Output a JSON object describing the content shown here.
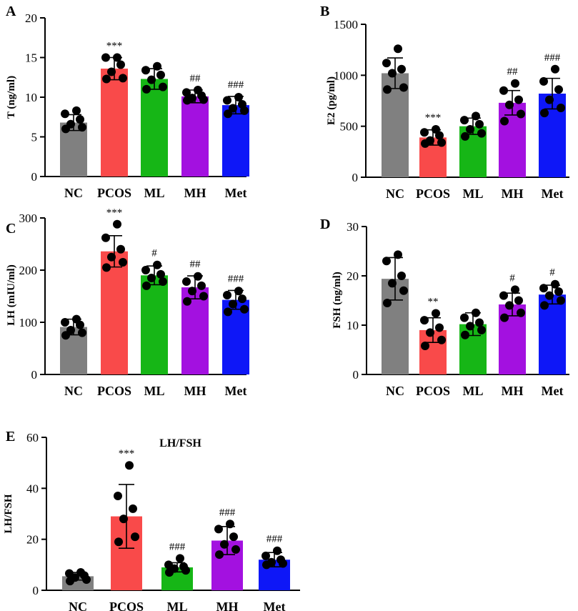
{
  "figure": {
    "colors": {
      "NC": "#808080",
      "PCOS": "#f94a4a",
      "ML": "#16b616",
      "MH": "#a311e0",
      "Met": "#0e17f7",
      "axis": "#000000",
      "point": "#000000"
    }
  },
  "chart_data": [
    {
      "panel": "A",
      "type": "bar",
      "title": "",
      "ylabel": "T (ng/ml)",
      "xlabel": "",
      "categories": [
        "NC",
        "PCOS",
        "ML",
        "MH",
        "Met"
      ],
      "values": [
        6.8,
        13.6,
        12.3,
        10.1,
        9.0
      ],
      "errors": [
        1.0,
        1.4,
        1.3,
        0.8,
        1.1
      ],
      "points": [
        [
          6.0,
          6.2,
          6.6,
          7.2,
          7.9,
          8.3
        ],
        [
          12.3,
          12.4,
          13.2,
          14.1,
          15.0,
          15.0
        ],
        [
          11.0,
          11.3,
          12.2,
          12.8,
          13.4,
          13.9
        ],
        [
          9.6,
          9.7,
          9.9,
          10.2,
          10.6,
          10.9
        ],
        [
          7.9,
          8.3,
          8.6,
          9.1,
          9.6,
          10.0
        ]
      ],
      "significance": [
        "",
        "***",
        "",
        "##",
        "###"
      ],
      "ylim": [
        0,
        20
      ],
      "yticks": [
        0,
        5,
        10,
        15,
        20
      ]
    },
    {
      "panel": "B",
      "type": "bar",
      "title": "",
      "ylabel": "E2 (pg/ml)",
      "xlabel": "",
      "categories": [
        "NC",
        "PCOS",
        "ML",
        "MH",
        "Met"
      ],
      "values": [
        1020,
        390,
        500,
        730,
        820
      ],
      "errors": [
        150,
        75,
        80,
        120,
        150
      ],
      "points": [
        [
          860,
          880,
          1020,
          1060,
          1120,
          1260
        ],
        [
          330,
          340,
          360,
          410,
          440,
          470
        ],
        [
          400,
          430,
          470,
          520,
          560,
          600
        ],
        [
          550,
          620,
          710,
          760,
          850,
          920
        ],
        [
          630,
          680,
          760,
          860,
          940,
          1060
        ]
      ],
      "significance": [
        "",
        "***",
        "",
        "##",
        "###"
      ],
      "ylim": [
        0,
        1500
      ],
      "yticks": [
        0,
        500,
        1000,
        1500
      ]
    },
    {
      "panel": "C",
      "type": "bar",
      "title": "",
      "ylabel": "LH (mIU/ml)",
      "xlabel": "",
      "categories": [
        "NC",
        "PCOS",
        "ML",
        "MH",
        "Met"
      ],
      "values": [
        91,
        236,
        190,
        167,
        143
      ],
      "errors": [
        15,
        30,
        18,
        22,
        18
      ],
      "points": [
        [
          75,
          80,
          85,
          95,
          100,
          106
        ],
        [
          205,
          215,
          225,
          240,
          262,
          288
        ],
        [
          170,
          178,
          185,
          192,
          200,
          210
        ],
        [
          140,
          150,
          160,
          170,
          178,
          188
        ],
        [
          120,
          125,
          135,
          145,
          152,
          160
        ]
      ],
      "significance": [
        "",
        "***",
        "#",
        "##",
        "###"
      ],
      "ylim": [
        0,
        300
      ],
      "yticks": [
        0,
        100,
        200,
        300
      ]
    },
    {
      "panel": "D",
      "type": "bar",
      "title": "",
      "ylabel": "FSH (ng/ml)",
      "xlabel": "",
      "categories": [
        "NC",
        "PCOS",
        "ML",
        "MH",
        "Met"
      ],
      "values": [
        19.4,
        9.0,
        10.2,
        14.2,
        16.2
      ],
      "errors": [
        4.3,
        2.5,
        2.3,
        2.3,
        1.9
      ],
      "points": [
        [
          14.5,
          17.0,
          18.5,
          20.0,
          23.0,
          24.3
        ],
        [
          5.8,
          7.0,
          8.5,
          9.5,
          11.0,
          12.4
        ],
        [
          8.0,
          9.0,
          9.8,
          10.5,
          11.5,
          12.5
        ],
        [
          11.5,
          12.5,
          14.0,
          15.0,
          16.0,
          17.2
        ],
        [
          14.0,
          15.0,
          16.0,
          16.8,
          17.5,
          18.3
        ]
      ],
      "significance": [
        "",
        "**",
        "",
        "#",
        "#"
      ],
      "ylim": [
        0,
        30
      ],
      "yticks": [
        0,
        10,
        20,
        30
      ]
    },
    {
      "panel": "E",
      "type": "bar",
      "title": "LH/FSH",
      "ylabel": "LH/FSH",
      "xlabel": "",
      "categories": [
        "NC",
        "PCOS",
        "ML",
        "MH",
        "Met"
      ],
      "values": [
        5.5,
        29.0,
        9.0,
        19.5,
        12.0
      ],
      "errors": [
        1.5,
        12.5,
        1.8,
        5.5,
        2.8
      ],
      "points": [
        [
          3.6,
          4.2,
          5.0,
          5.8,
          6.6,
          7.0
        ],
        [
          19.0,
          21.0,
          28.0,
          32.0,
          37.0,
          49.0
        ],
        [
          7.0,
          7.8,
          8.5,
          9.3,
          10.0,
          12.5
        ],
        [
          14.0,
          16.0,
          18.0,
          21.0,
          24.0,
          26.0
        ],
        [
          10.0,
          10.5,
          11.0,
          12.0,
          13.5,
          15.5
        ]
      ],
      "significance": [
        "",
        "***",
        "###",
        "###",
        "###"
      ],
      "ylim": [
        0,
        60
      ],
      "yticks": [
        0,
        20,
        40,
        60
      ]
    }
  ]
}
